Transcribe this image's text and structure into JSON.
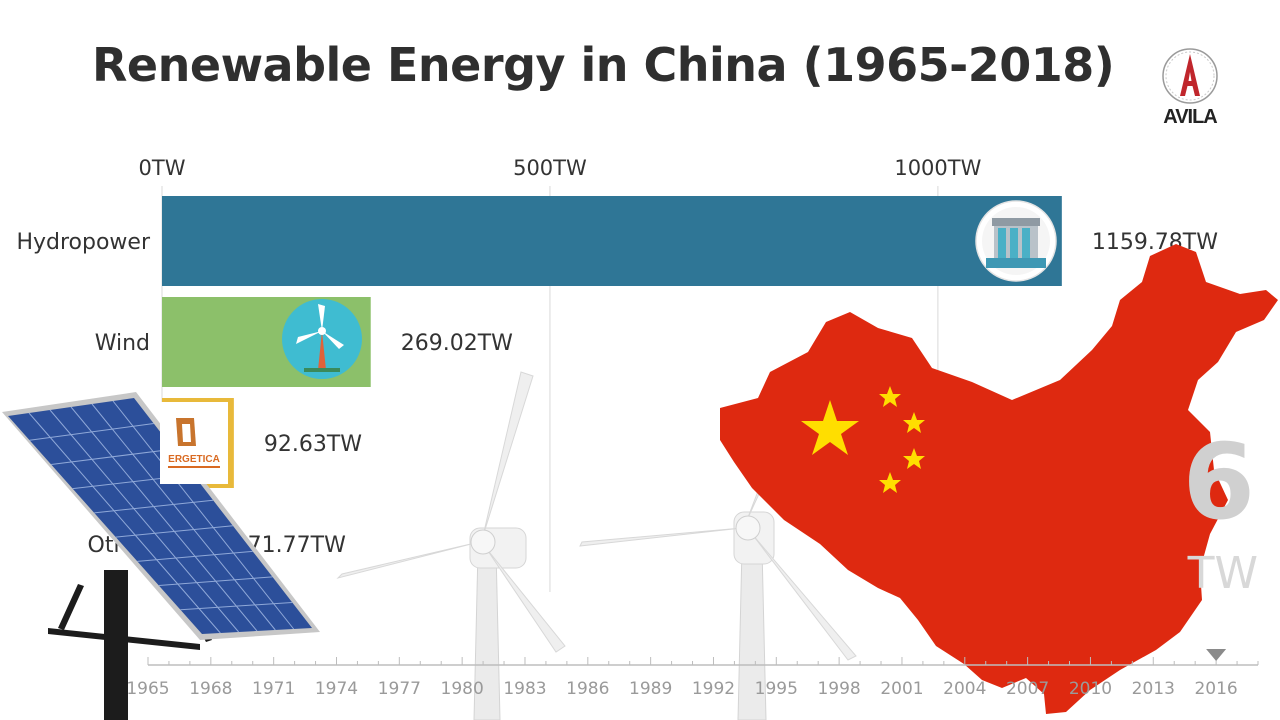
{
  "header": {
    "title": "Renewable Energy in China (1965-2018)",
    "logo_text": "AVILA"
  },
  "chart_data": {
    "type": "bar",
    "orientation": "horizontal",
    "title": "Renewable Energy in China (1965-2018)",
    "categories": [
      "Hydropower",
      "Wind",
      "Solar",
      "Other"
    ],
    "series": [
      {
        "values": [
          1159.78,
          269.02,
          92.63,
          71.77
        ]
      }
    ],
    "value_labels": [
      "1159.78TW",
      "269.02TW",
      "92.63TW",
      "71.77TW"
    ],
    "bar_colors": [
      "#2f7696",
      "#8cc06a",
      "#e8b93a",
      "#d9d9d9"
    ],
    "x_ticks": [
      0,
      500,
      1000
    ],
    "x_tick_labels": [
      "0TW",
      "500TW",
      "1000TW"
    ],
    "xlim": [
      0,
      1160
    ],
    "grid": true,
    "timeline": {
      "years": [
        "1965",
        "1968",
        "1971",
        "1974",
        "1977",
        "1980",
        "1983",
        "1986",
        "1989",
        "1992",
        "1995",
        "1998",
        "2001",
        "2004",
        "2007",
        "2010",
        "2013",
        "2016"
      ],
      "range": [
        1965,
        2018
      ],
      "current": 2016
    },
    "current_year_label": "6",
    "current_total_label": "TW",
    "icons": [
      "hydro-dam-icon",
      "wind-turbine-icon",
      "solar-energetica-logo"
    ],
    "solar_icon_text": "ERGETICA"
  },
  "decor": [
    "solar-panel",
    "wind-turbines",
    "china-map",
    "china-flag"
  ],
  "colors": {
    "title": "#2f2f2f",
    "flag_red": "#de2910",
    "flag_star": "#ffde00",
    "grid": "#e6e6e6"
  }
}
